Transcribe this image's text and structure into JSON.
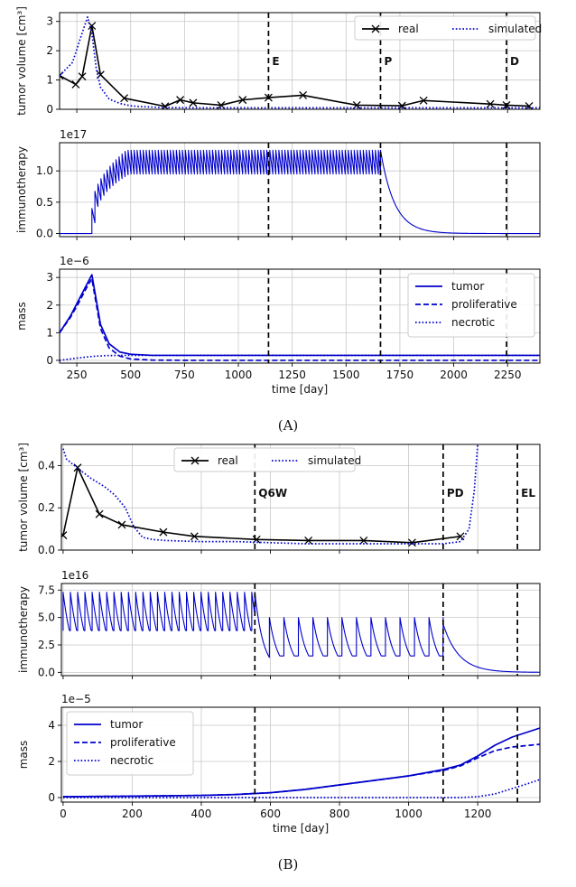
{
  "figure": {
    "panel_labels": [
      "(A)",
      "(B)"
    ]
  },
  "chart_data": [
    {
      "type": "line",
      "panel": "A",
      "subplot": 1,
      "ylabel": "tumor volume [cm³]",
      "xlim": [
        170,
        2400
      ],
      "ylim": [
        0,
        3.3
      ],
      "yticks": [
        0,
        1,
        2,
        3
      ],
      "xticks": [
        250,
        500,
        750,
        1000,
        1250,
        1500,
        1750,
        2000,
        2250
      ],
      "grid": true,
      "legend": {
        "placement": "top-right",
        "ncol": 2
      },
      "vlines": [
        {
          "x": 1140,
          "label": "E"
        },
        {
          "x": 1660,
          "label": "P"
        },
        {
          "x": 2245,
          "label": "D"
        }
      ],
      "series": [
        {
          "name": "real",
          "style": "solid-x",
          "color": "#000000",
          "x": [
            170,
            245,
            275,
            320,
            360,
            470,
            660,
            730,
            790,
            920,
            1020,
            1140,
            1300,
            1550,
            1760,
            1860,
            2170,
            2245,
            2350
          ],
          "y": [
            1.15,
            0.85,
            1.12,
            2.85,
            1.18,
            0.38,
            0.1,
            0.32,
            0.22,
            0.14,
            0.32,
            0.4,
            0.48,
            0.14,
            0.12,
            0.3,
            0.18,
            0.14,
            0.11
          ]
        },
        {
          "name": "simulated",
          "style": "dotted",
          "color": "#0000cc",
          "x": [
            170,
            230,
            270,
            300,
            320,
            340,
            360,
            400,
            450,
            500,
            550,
            650,
            800,
            1000,
            1200,
            1500,
            1800,
            2100,
            2400
          ],
          "y": [
            1.15,
            1.6,
            2.5,
            3.15,
            2.6,
            1.4,
            0.75,
            0.35,
            0.2,
            0.12,
            0.09,
            0.06,
            0.05,
            0.05,
            0.05,
            0.05,
            0.05,
            0.05,
            0.05
          ]
        }
      ]
    },
    {
      "type": "line",
      "panel": "A",
      "subplot": 2,
      "ylabel": "immunotherapy",
      "offset_text": "1e17",
      "xlim": [
        170,
        2400
      ],
      "ylim": [
        -0.05,
        1.45
      ],
      "yticks": [
        0.0,
        0.5,
        1.0
      ],
      "xticks": [
        250,
        500,
        750,
        1000,
        1250,
        1500,
        1750,
        2000,
        2250
      ],
      "grid": true,
      "vlines": [
        {
          "x": 1140
        },
        {
          "x": 1660
        },
        {
          "x": 2245
        }
      ],
      "series": [
        {
          "name": "immunotherapy",
          "style": "solid",
          "color": "#0000cc",
          "oscillation": {
            "start": 320,
            "end": 1660,
            "period": 14,
            "low": 0.95,
            "high": 1.33,
            "ramp_start_high": 0.4,
            "ramp_days": 160
          },
          "decay": {
            "start": 1660,
            "tau": 65,
            "from": 1.33
          },
          "baseline": 0.0
        }
      ]
    },
    {
      "type": "line",
      "panel": "A",
      "subplot": 3,
      "ylabel": "mass",
      "offset_text": "1e−6",
      "xlabel": "time [day]",
      "xlim": [
        170,
        2400
      ],
      "ylim": [
        -0.1,
        3.3
      ],
      "yticks": [
        0,
        1,
        2,
        3
      ],
      "xticks": [
        250,
        500,
        750,
        1000,
        1250,
        1500,
        1750,
        2000,
        2250
      ],
      "grid": true,
      "legend": {
        "placement": "top-right",
        "ncol": 1
      },
      "vlines": [
        {
          "x": 1140
        },
        {
          "x": 1660
        },
        {
          "x": 2245
        }
      ],
      "series": [
        {
          "name": "tumor",
          "style": "solid",
          "color": "#0000cc",
          "x": [
            170,
            220,
            260,
            300,
            320,
            340,
            360,
            400,
            450,
            500,
            600,
            800,
            2400
          ],
          "y": [
            1.0,
            1.6,
            2.2,
            2.8,
            3.1,
            2.2,
            1.3,
            0.6,
            0.3,
            0.22,
            0.18,
            0.18,
            0.18
          ]
        },
        {
          "name": "proliferative",
          "style": "dashed",
          "color": "#0000cc",
          "x": [
            170,
            220,
            260,
            300,
            320,
            340,
            360,
            400,
            450,
            500,
            600,
            800,
            2400
          ],
          "y": [
            1.0,
            1.55,
            2.1,
            2.7,
            2.95,
            2.05,
            1.15,
            0.45,
            0.15,
            0.05,
            0.01,
            0.0,
            0.0
          ]
        },
        {
          "name": "necrotic",
          "style": "dotted",
          "color": "#0000cc",
          "x": [
            170,
            250,
            320,
            380,
            450,
            550,
            700,
            2400
          ],
          "y": [
            0.0,
            0.08,
            0.14,
            0.17,
            0.18,
            0.18,
            0.18,
            0.18
          ]
        }
      ]
    },
    {
      "type": "line",
      "panel": "B",
      "subplot": 1,
      "ylabel": "tumor volume [cm³]",
      "xlim": [
        -5,
        1380
      ],
      "ylim": [
        0,
        0.5
      ],
      "yticks": [
        0.0,
        0.2,
        0.4
      ],
      "xticks": [
        0,
        200,
        400,
        600,
        800,
        1000,
        1200
      ],
      "grid": true,
      "legend": {
        "placement": "top-center",
        "ncol": 2
      },
      "vlines": [
        {
          "x": 555,
          "label": "Q6W"
        },
        {
          "x": 1100,
          "label": "PD"
        },
        {
          "x": 1315,
          "label": "EL"
        }
      ],
      "series": [
        {
          "name": "real",
          "style": "solid-x",
          "color": "#000000",
          "x": [
            0,
            42,
            105,
            170,
            290,
            380,
            560,
            710,
            870,
            1010,
            1150
          ],
          "y": [
            0.07,
            0.39,
            0.17,
            0.12,
            0.085,
            0.065,
            0.05,
            0.045,
            0.045,
            0.035,
            0.065
          ]
        },
        {
          "name": "simulated",
          "style": "dotted",
          "color": "#0000cc",
          "x": [
            0,
            10,
            40,
            80,
            120,
            150,
            180,
            205,
            230,
            260,
            300,
            400,
            500,
            600,
            700,
            800,
            900,
            1000,
            1100,
            1150,
            1175,
            1190,
            1200
          ],
          "y": [
            0.48,
            0.43,
            0.39,
            0.34,
            0.3,
            0.26,
            0.2,
            0.11,
            0.06,
            0.05,
            0.045,
            0.04,
            0.04,
            0.035,
            0.03,
            0.03,
            0.03,
            0.03,
            0.03,
            0.04,
            0.1,
            0.28,
            0.5
          ]
        }
      ]
    },
    {
      "type": "line",
      "panel": "B",
      "subplot": 2,
      "ylabel": "immunotherapy",
      "offset_text": "1e16",
      "xlim": [
        -5,
        1380
      ],
      "ylim": [
        -0.3,
        8.1
      ],
      "yticks": [
        0.0,
        2.5,
        5.0,
        7.5
      ],
      "xticks": [
        0,
        200,
        400,
        600,
        800,
        1000,
        1200
      ],
      "grid": true,
      "vlines": [
        {
          "x": 555
        },
        {
          "x": 1100
        },
        {
          "x": 1315
        }
      ],
      "series": [
        {
          "name": "immunotherapy",
          "style": "solid",
          "color": "#0000cc",
          "phase1": {
            "start": 0,
            "end": 555,
            "period": 21,
            "high": 7.3,
            "low": 3.8
          },
          "phase2": {
            "start": 555,
            "end": 1100,
            "period": 42,
            "high": 5.0,
            "low": 1.5,
            "first_low": 0.8
          },
          "decay": {
            "start": 1100,
            "tau": 45,
            "from": 4.4
          }
        }
      ]
    },
    {
      "type": "line",
      "panel": "B",
      "subplot": 3,
      "ylabel": "mass",
      "offset_text": "1e−5",
      "xlabel": "time [day]",
      "xlim": [
        -5,
        1380
      ],
      "ylim": [
        -0.25,
        5.0
      ],
      "yticks": [
        0,
        2,
        4
      ],
      "xticks": [
        0,
        200,
        400,
        600,
        800,
        1000,
        1200
      ],
      "grid": true,
      "legend": {
        "placement": "top-left",
        "ncol": 1
      },
      "vlines": [
        {
          "x": 555
        },
        {
          "x": 1100
        },
        {
          "x": 1315
        }
      ],
      "series": [
        {
          "name": "tumor",
          "style": "solid",
          "color": "#0000cc",
          "x": [
            0,
            200,
            400,
            500,
            600,
            700,
            800,
            900,
            1000,
            1100,
            1150,
            1200,
            1250,
            1300,
            1380
          ],
          "y": [
            0.05,
            0.08,
            0.12,
            0.17,
            0.27,
            0.45,
            0.7,
            0.95,
            1.2,
            1.55,
            1.8,
            2.3,
            2.9,
            3.35,
            3.85
          ]
        },
        {
          "name": "proliferative",
          "style": "dashed",
          "color": "#0000cc",
          "x": [
            0,
            200,
            400,
            500,
            600,
            700,
            800,
            900,
            1000,
            1100,
            1150,
            1200,
            1250,
            1300,
            1380
          ],
          "y": [
            0.05,
            0.08,
            0.12,
            0.17,
            0.27,
            0.45,
            0.7,
            0.95,
            1.2,
            1.5,
            1.75,
            2.2,
            2.6,
            2.8,
            2.95
          ]
        },
        {
          "name": "necrotic",
          "style": "dotted",
          "color": "#0000cc",
          "x": [
            0,
            1100,
            1150,
            1200,
            1250,
            1300,
            1350,
            1380
          ],
          "y": [
            0.0,
            0.0,
            0.0,
            0.05,
            0.2,
            0.5,
            0.8,
            1.0
          ]
        }
      ]
    }
  ]
}
